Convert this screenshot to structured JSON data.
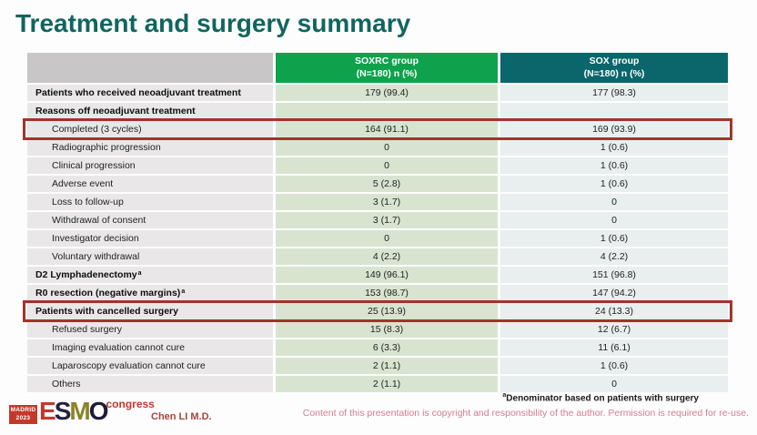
{
  "slide": {
    "title": "Treatment and surgery summary",
    "colors": {
      "title_teal": "#11655f",
      "header_green": "#0fa24c",
      "header_teal": "#0a666b",
      "label_column_bg": "#e9e7e8",
      "soxrc_column_bg": "#d8e4d0",
      "sox_column_bg": "#e9efee",
      "highlight_box_red": "#a3332b",
      "copyright_pink": "#d27d8e"
    }
  },
  "table": {
    "columns": [
      {
        "name": "SOXRC group",
        "sub": "(N=180)  n (%)"
      },
      {
        "name": "SOX group",
        "sub": "(N=180)  n (%)"
      }
    ],
    "rows": [
      {
        "label": "Patients who received neoadjuvant treatment",
        "soxrc": "179 (99.4)",
        "sox": "177 (98.3)",
        "bold": true
      },
      {
        "label": "Reasons off neoadjuvant treatment",
        "soxrc": "",
        "sox": "",
        "bold": true
      },
      {
        "label": "Completed (3 cycles)",
        "soxrc": "164 (91.1)",
        "sox": "169 (93.9)",
        "indent": true,
        "highlight": true
      },
      {
        "label": "Radiographic progression",
        "soxrc": "0",
        "sox": "1 (0.6)",
        "indent": true
      },
      {
        "label": "Clinical progression",
        "soxrc": "0",
        "sox": "1 (0.6)",
        "indent": true
      },
      {
        "label": "Adverse event",
        "soxrc": "5 (2.8)",
        "sox": "1 (0.6)",
        "indent": true
      },
      {
        "label": "Loss to follow-up",
        "soxrc": "3 (1.7)",
        "sox": "0",
        "indent": true
      },
      {
        "label": "Withdrawal of consent",
        "soxrc": "3 (1.7)",
        "sox": "0",
        "indent": true
      },
      {
        "label": "Investigator decision",
        "soxrc": "0",
        "sox": "1 (0.6)",
        "indent": true
      },
      {
        "label": "Voluntary withdrawal",
        "soxrc": "4 (2.2)",
        "sox": "4 (2.2)",
        "indent": true
      },
      {
        "label": "D2 Lymphadenectomy",
        "label_sup": "a",
        "soxrc": "149 (96.1)",
        "sox": "151 (96.8)",
        "bold": true
      },
      {
        "label": "R0 resection (negative margins)",
        "label_sup": "a",
        "soxrc": "153 (98.7)",
        "sox": "147 (94.2)",
        "bold": true
      },
      {
        "label": "Patients with cancelled surgery",
        "soxrc": "25 (13.9)",
        "sox": "24 (13.3)",
        "bold": true,
        "highlight": true
      },
      {
        "label": "Refused surgery",
        "soxrc": "15 (8.3)",
        "sox": "12 (6.7)",
        "indent": true
      },
      {
        "label": "Imaging evaluation cannot cure",
        "soxrc": "6 (3.3)",
        "sox": "11 (6.1)",
        "indent": true
      },
      {
        "label": "Laparoscopy evaluation cannot cure",
        "soxrc": "2 (1.1)",
        "sox": "1 (0.6)",
        "indent": true
      },
      {
        "label": "Others",
        "soxrc": "2 (1.1)",
        "sox": "0",
        "indent": true
      }
    ]
  },
  "footer": {
    "logo": {
      "location": "MADRID",
      "year": "2023",
      "letters": {
        "e": "E",
        "s": "S",
        "m": "M",
        "o": "O"
      },
      "congress": "congress"
    },
    "author": "Chen LI M.D.",
    "footnote_sup": "a",
    "footnote": "Denominator based on patients with surgery",
    "copyright": "Content of this presentation is copyright and responsibility of the author. Permission is required for re-use."
  }
}
